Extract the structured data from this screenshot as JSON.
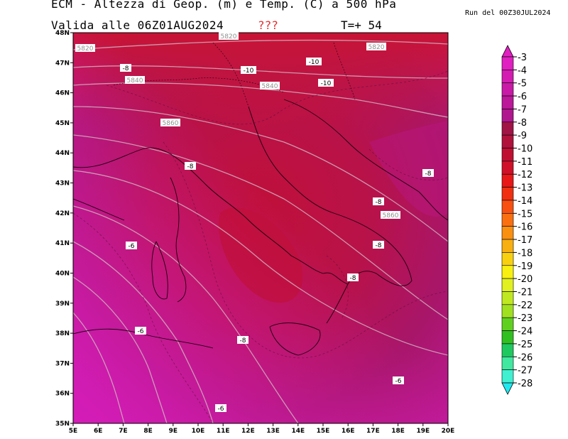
{
  "header": {
    "title_line1": "ECM - Altezza di Geop. (m) e Temp. (C) a 500 hPa",
    "title_line2": "Valida alle 06Z01AUG2024",
    "unknown_marker": "???",
    "forecast_step": "T=+ 54",
    "run_info": "Run del 00Z30JUL2024"
  },
  "axes": {
    "lon_labels": [
      "5E",
      "6E",
      "7E",
      "8E",
      "9E",
      "10E",
      "11E",
      "12E",
      "13E",
      "14E",
      "15E",
      "16E",
      "17E",
      "18E",
      "19E",
      "20E"
    ],
    "lat_labels": [
      "48N",
      "47N",
      "46N",
      "45N",
      "44N",
      "43N",
      "42N",
      "41N",
      "40N",
      "39N",
      "38N",
      "37N",
      "36N",
      "35N"
    ],
    "lon_range": [
      5,
      20
    ],
    "lat_range": [
      35,
      48
    ]
  },
  "colorbar": {
    "labels": [
      "-3",
      "-4",
      "-5",
      "-6",
      "-7",
      "-8",
      "-9",
      "-10",
      "-11",
      "-12",
      "-13",
      "-14",
      "-15",
      "-16",
      "-17",
      "-18",
      "-19",
      "-20",
      "-21",
      "-22",
      "-23",
      "-24",
      "-25",
      "-26",
      "-27",
      "-28"
    ],
    "colors": [
      "#e020c0",
      "#d41cb2",
      "#c81aa6",
      "#bc189a",
      "#b0168e",
      "#a01446",
      "#b0123c",
      "#c01032",
      "#d01028",
      "#e81818",
      "#f03010",
      "#f85010",
      "#fa7010",
      "#fa9010",
      "#f8b010",
      "#f8d010",
      "#f8f010",
      "#e0f020",
      "#c0e820",
      "#a0e020",
      "#60d020",
      "#30c020",
      "#20c860",
      "#40e8a0",
      "#40f0d0",
      "#20e8f0"
    ]
  },
  "map": {
    "contour_labels_geop": [
      "5820",
      "5820",
      "5820",
      "5840",
      "5840",
      "5860",
      "5860"
    ],
    "contour_labels_temp": [
      "-8",
      "-10",
      "-10",
      "-10",
      "-8",
      "-8",
      "-8",
      "-8",
      "-8",
      "-6",
      "-6",
      "-8",
      "-6",
      "-6"
    ]
  }
}
